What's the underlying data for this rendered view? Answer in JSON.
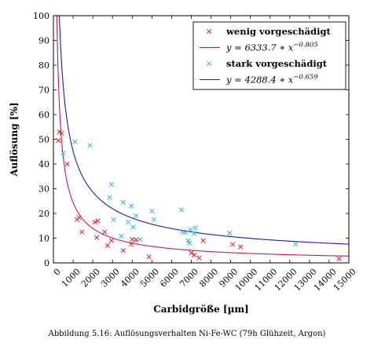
{
  "caption": "Abbildung 5.16: Auflösungsverhalten Ni-Fe-WC (79h Glühzeit, Argon)",
  "chart_data": {
    "type": "scatter",
    "title": "",
    "xlabel": "Carbidgröße [µm]",
    "ylabel": "Auflösung [%]",
    "xlim": [
      0,
      15000
    ],
    "ylim": [
      0,
      100
    ],
    "xticks": [
      0,
      1000,
      2000,
      3000,
      4000,
      5000,
      6000,
      7000,
      8000,
      9000,
      10000,
      11000,
      12000,
      13000,
      14000,
      15000
    ],
    "xtick_labels": [
      "0",
      "1000",
      "2000",
      "3000",
      "4000",
      "5000",
      "6000",
      "7000",
      "8000",
      "9000",
      "10000",
      "11000",
      "12000",
      "13000",
      "14000",
      "15000"
    ],
    "yticks": [
      0,
      10,
      20,
      30,
      40,
      50,
      60,
      70,
      80,
      90,
      100
    ],
    "ytick_labels": [
      "0",
      "10",
      "20",
      "30",
      "40",
      "50",
      "60",
      "70",
      "80",
      "90",
      "100"
    ],
    "grid": false,
    "legend_position": "top-right",
    "series": [
      {
        "name": "wenig vorgeschädigt",
        "kind": "scatter",
        "marker": "x",
        "color": "#e41a1c",
        "points": [
          [
            250,
            49.5
          ],
          [
            300,
            53
          ],
          [
            420,
            52.5
          ],
          [
            700,
            40
          ],
          [
            1200,
            17.5
          ],
          [
            1300,
            18.3
          ],
          [
            1450,
            12.5
          ],
          [
            2100,
            16.5
          ],
          [
            2200,
            10.3
          ],
          [
            2250,
            17
          ],
          [
            2600,
            12.5
          ],
          [
            2750,
            7
          ],
          [
            2950,
            9
          ],
          [
            3550,
            5
          ],
          [
            3950,
            7.5
          ],
          [
            4000,
            9.5
          ],
          [
            4200,
            9.3
          ],
          [
            4850,
            2.5
          ],
          [
            7000,
            4
          ],
          [
            7150,
            3.2
          ],
          [
            7400,
            2
          ],
          [
            7600,
            9
          ],
          [
            9100,
            7.5
          ],
          [
            9500,
            6.5
          ],
          [
            14500,
            1.7
          ]
        ]
      },
      {
        "name": "y = 6333.7 * x^-0.805",
        "legend_label": "y = 6333.7 ∗ x",
        "legend_exponent": "−0.805",
        "kind": "fit",
        "color": "#c2185b",
        "coefficient": 6333.7,
        "exponent": -0.805
      },
      {
        "name": "stark vorgeschädigt",
        "kind": "scatter",
        "marker": "x",
        "color": "#29b6d6",
        "points": [
          [
            500,
            44.5
          ],
          [
            1100,
            49
          ],
          [
            1850,
            47.5
          ],
          [
            2850,
            26.5
          ],
          [
            2950,
            31.8
          ],
          [
            3050,
            17.5
          ],
          [
            3450,
            10.8
          ],
          [
            3550,
            24.5
          ],
          [
            3800,
            16.5
          ],
          [
            3950,
            23
          ],
          [
            4050,
            14.5
          ],
          [
            4200,
            19
          ],
          [
            4400,
            9.5
          ],
          [
            5000,
            21
          ],
          [
            5100,
            17.5
          ],
          [
            6500,
            21.5
          ],
          [
            6550,
            12.5
          ],
          [
            6700,
            12.3
          ],
          [
            6850,
            9
          ],
          [
            6900,
            8
          ],
          [
            6950,
            13.3
          ],
          [
            7150,
            12
          ],
          [
            7200,
            14.2
          ],
          [
            8950,
            12
          ],
          [
            12300,
            7.6
          ]
        ]
      },
      {
        "name": "y = 4288.4 * x^-0.659",
        "legend_label": "y = 4288.4 ∗ x",
        "legend_exponent": "−0.659",
        "kind": "fit",
        "color": "#1a1ab0",
        "coefficient": 4288.4,
        "exponent": -0.659
      }
    ]
  }
}
